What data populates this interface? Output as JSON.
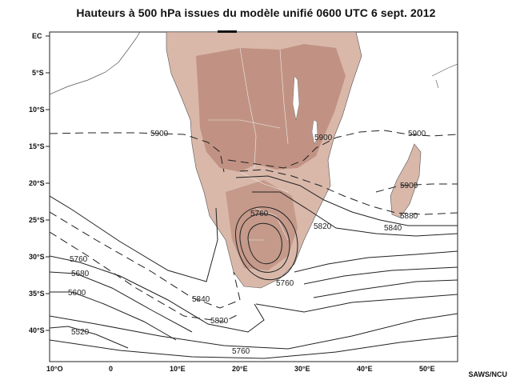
{
  "title": "Hauteurs à 500 hPa issues du modèle unifié 0600 UTC 6 sept. 2012",
  "credit": "SAWS/NCU",
  "lat_labels": [
    "EC",
    "5°S",
    "10°S",
    "15°S",
    "20°S",
    "25°S",
    "30°S",
    "35°S",
    "40°S"
  ],
  "lon_labels": [
    "10°O",
    "0",
    "10°E",
    "20°E",
    "30°E",
    "40°E",
    "50°E"
  ],
  "contour_labels": [
    "5900",
    "5900",
    "5900",
    "5900",
    "5880",
    "5840",
    "5820",
    "5760",
    "5760",
    "5760",
    "5680",
    "5600",
    "5520",
    "5840",
    "5820",
    "5760"
  ],
  "colors": {
    "land": "#d7b3a4",
    "land_dark": "#b4806f",
    "ocean": "#ffffff",
    "contour": "#222222"
  }
}
